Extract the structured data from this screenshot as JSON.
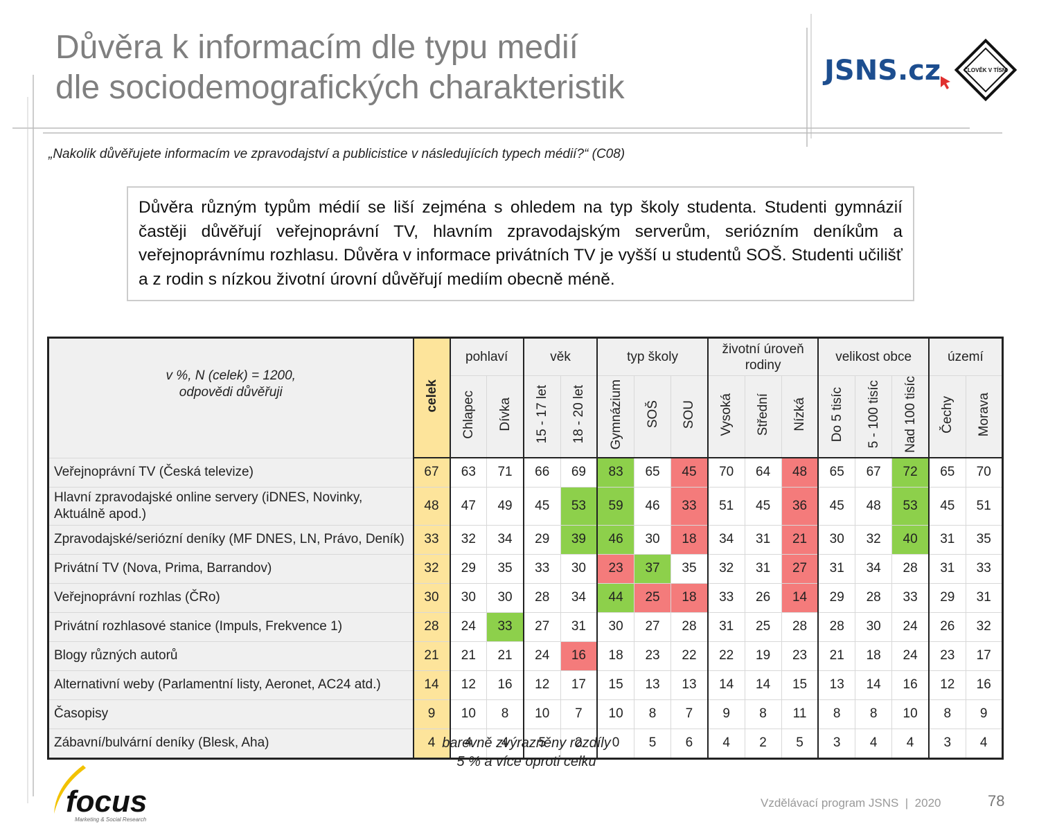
{
  "header": {
    "title": [
      "Důvěra k informacím dle typu medií",
      "dle sociodemografických charakteristik"
    ],
    "logo_text": "JSNS.cz",
    "logo_badge": "ČLOVĚK V TÍSNI"
  },
  "question": "„Nakolik důvěřujete informacím ve zpravodajství a publicistice v následujících typech médií?“ (C08)",
  "summary": "Důvěra různým typům médií se liší zejména s ohledem na typ školy studenta. Studenti gymnázií častěji důvěřují veřejnoprávní TV, hlavním zpravodajským serverům, seriózním deníkům a veřejnoprávnímu rozhlasu. Důvěra v informace privátních TV je vyšší u studentů SOŠ. Studenti učilišť a z rodin s nízkou životní úrovní důvěřují mediím obecně méně.",
  "table": {
    "corner": [
      "v %, N (celek) = 1200,",
      "odpovědi důvěřuji"
    ],
    "total_column": "celek",
    "groups": [
      {
        "name": "pohlaví",
        "columns": [
          "Chlapec",
          "Dívka"
        ]
      },
      {
        "name": "věk",
        "columns": [
          "15 - 17 let",
          "18 - 20 let"
        ]
      },
      {
        "name": "typ školy",
        "columns": [
          "Gymnázium",
          "SOŠ",
          "SOU"
        ]
      },
      {
        "name": "životní úroveň rodiny",
        "columns": [
          "Vysoká",
          "Střední",
          "Nízká"
        ]
      },
      {
        "name": "velikost obce",
        "columns": [
          "Do 5 tisíc",
          "5 - 100 tisíc",
          "Nad 100 tisíc"
        ]
      },
      {
        "name": "území",
        "columns": [
          "Čechy",
          "Morava"
        ]
      }
    ],
    "rows": [
      {
        "label": "Veřejnoprávní TV (Česká televize)",
        "values": [
          67,
          63,
          71,
          66,
          69,
          83,
          65,
          45,
          70,
          64,
          48,
          65,
          67,
          72,
          65,
          70
        ],
        "green": [
          5,
          13
        ],
        "red": [
          7,
          10
        ]
      },
      {
        "label": "Hlavní zpravodajské online servery (iDNES, Novinky, Aktuálně apod.)",
        "values": [
          48,
          47,
          49,
          45,
          53,
          59,
          46,
          33,
          51,
          45,
          36,
          45,
          48,
          53,
          45,
          51
        ],
        "green": [
          4,
          5,
          13
        ],
        "red": [
          7,
          10
        ]
      },
      {
        "label": "Zpravodajské/seriózní deníky (MF DNES, LN, Právo, Deník)",
        "values": [
          33,
          32,
          34,
          29,
          39,
          46,
          30,
          18,
          34,
          31,
          21,
          30,
          32,
          40,
          31,
          35
        ],
        "green": [
          4,
          5,
          13
        ],
        "red": [
          7,
          10
        ]
      },
      {
        "label": "Privátní TV (Nova, Prima, Barrandov)",
        "values": [
          32,
          29,
          35,
          33,
          30,
          23,
          37,
          35,
          32,
          31,
          27,
          31,
          34,
          28,
          31,
          33
        ],
        "green": [
          6
        ],
        "red": [
          5,
          10
        ]
      },
      {
        "label": "Veřejnoprávní rozhlas (ČRo)",
        "values": [
          30,
          30,
          30,
          28,
          34,
          44,
          25,
          18,
          33,
          26,
          14,
          29,
          28,
          33,
          29,
          31
        ],
        "green": [
          5
        ],
        "red": [
          6,
          7,
          10
        ]
      },
      {
        "label": "Privátní rozhlasové stanice (Impuls, Frekvence 1)",
        "values": [
          28,
          24,
          33,
          27,
          31,
          30,
          27,
          28,
          31,
          25,
          28,
          28,
          30,
          24,
          26,
          32
        ],
        "green": [
          2
        ],
        "red": []
      },
      {
        "label": "Blogy různých autorů",
        "values": [
          21,
          21,
          21,
          24,
          16,
          18,
          23,
          22,
          22,
          19,
          23,
          21,
          18,
          24,
          23,
          17
        ],
        "green": [],
        "red": [
          4
        ]
      },
      {
        "label": "Alternativní weby (Parlamentní listy, Aeronet, AC24 atd.)",
        "values": [
          14,
          12,
          16,
          12,
          17,
          15,
          13,
          13,
          14,
          14,
          15,
          13,
          14,
          16,
          12,
          16
        ],
        "green": [],
        "red": []
      },
      {
        "label": "Časopisy",
        "values": [
          9,
          10,
          8,
          10,
          7,
          10,
          8,
          7,
          9,
          8,
          11,
          8,
          8,
          10,
          8,
          9
        ],
        "green": [],
        "red": []
      },
      {
        "label": "Zábavní/bulvární deníky (Blesk, Aha)",
        "values": [
          4,
          4,
          4,
          5,
          2,
          0,
          5,
          6,
          4,
          2,
          5,
          3,
          4,
          4,
          3,
          4
        ],
        "green": [],
        "red": []
      }
    ]
  },
  "note": [
    "barevně zvýrazněny rozdíly",
    "5 % a více oproti celku"
  ],
  "footer": {
    "logo": "focus",
    "logo_sub": "Marketing & Social Research",
    "program": "Vzdělávací program JSNS  |  2020",
    "page": "78"
  }
}
